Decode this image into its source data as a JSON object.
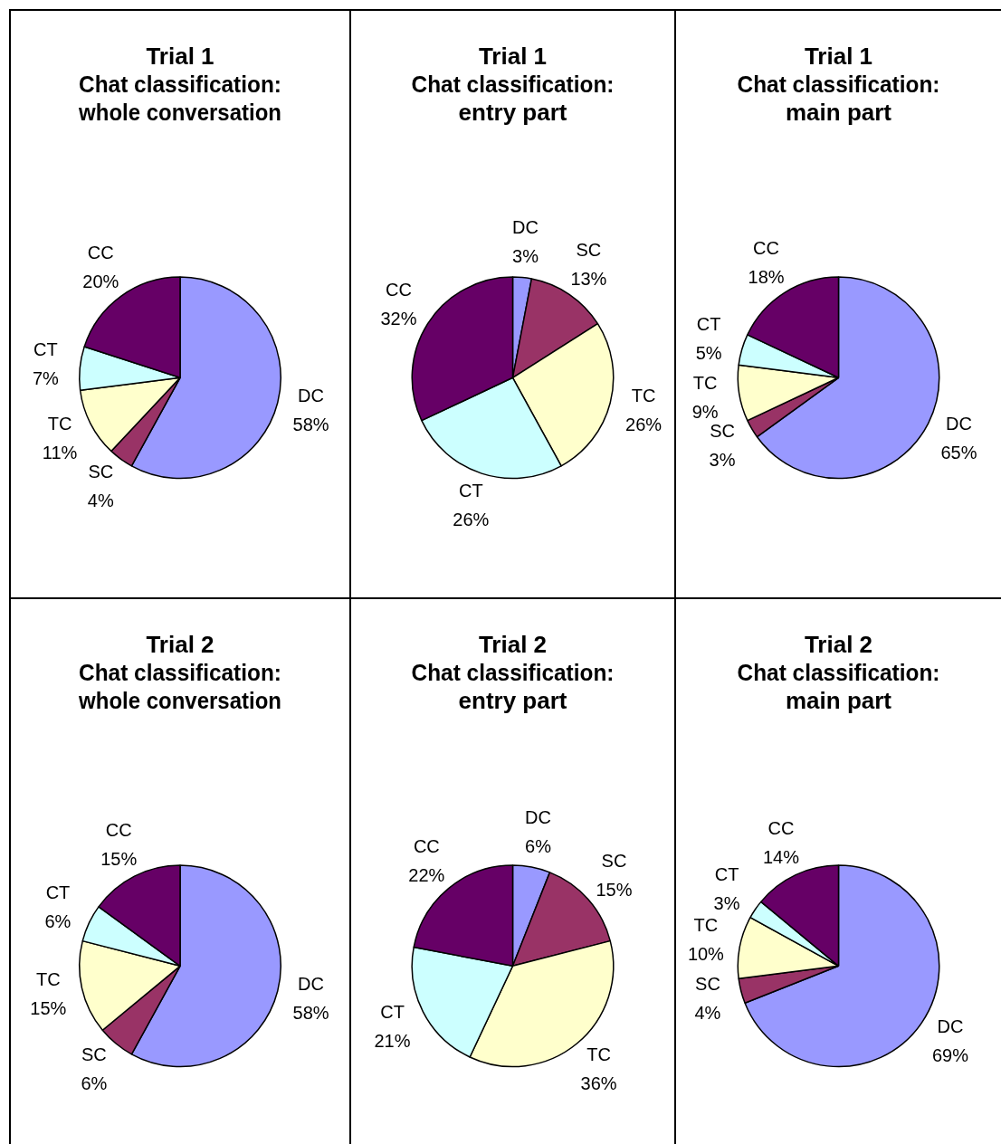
{
  "chart_data": [
    {
      "type": "pie",
      "title": "Trial 1\nChat classification:\nwhole conversation",
      "categories": [
        "DC",
        "SC",
        "TC",
        "CT",
        "CC"
      ],
      "values": [
        58,
        4,
        11,
        7,
        20
      ],
      "value_labels": [
        "58%",
        "4%",
        "11%",
        "7%",
        "20%"
      ],
      "colors": [
        "#9999ff",
        "#993366",
        "#ffffcc",
        "#ccffff",
        "#660066"
      ],
      "legend": false
    },
    {
      "type": "pie",
      "title": "Trial 1\nChat classification:\nentry part",
      "categories": [
        "DC",
        "SC",
        "TC",
        "CT",
        "CC"
      ],
      "values": [
        3,
        13,
        26,
        26,
        32
      ],
      "value_labels": [
        "3%",
        "13%",
        "26%",
        "26%",
        "32%"
      ],
      "colors": [
        "#9999ff",
        "#993366",
        "#ffffcc",
        "#ccffff",
        "#660066"
      ],
      "legend": false
    },
    {
      "type": "pie",
      "title": "Trial 1\nChat classification:\nmain part",
      "categories": [
        "DC",
        "SC",
        "TC",
        "CT",
        "CC"
      ],
      "values": [
        65,
        3,
        9,
        5,
        18
      ],
      "value_labels": [
        "65%",
        "3%",
        "9%",
        "5%",
        "18%"
      ],
      "colors": [
        "#9999ff",
        "#993366",
        "#ffffcc",
        "#ccffff",
        "#660066"
      ],
      "legend": false
    },
    {
      "type": "pie",
      "title": "Trial 2\nChat classification:\nwhole conversation",
      "categories": [
        "DC",
        "SC",
        "TC",
        "CT",
        "CC"
      ],
      "values": [
        58,
        6,
        15,
        6,
        15
      ],
      "value_labels": [
        "58%",
        "6%",
        "15%",
        "6%",
        "15%"
      ],
      "colors": [
        "#9999ff",
        "#993366",
        "#ffffcc",
        "#ccffff",
        "#660066"
      ],
      "legend": false
    },
    {
      "type": "pie",
      "title": "Trial 2\nChat classification:\nentry part",
      "categories": [
        "DC",
        "SC",
        "TC",
        "CT",
        "CC"
      ],
      "values": [
        6,
        15,
        36,
        21,
        22
      ],
      "value_labels": [
        "6%",
        "15%",
        "36%",
        "21%",
        "22%"
      ],
      "colors": [
        "#9999ff",
        "#993366",
        "#ffffcc",
        "#ccffff",
        "#660066"
      ],
      "legend": false
    },
    {
      "type": "pie",
      "title": "Trial 2\nChat classification:\nmain part",
      "categories": [
        "DC",
        "SC",
        "TC",
        "CT",
        "CC"
      ],
      "values": [
        69,
        4,
        10,
        3,
        14
      ],
      "value_labels": [
        "69%",
        "4%",
        "10%",
        "3%",
        "14%"
      ],
      "colors": [
        "#9999ff",
        "#993366",
        "#ffffcc",
        "#ccffff",
        "#660066"
      ],
      "legend": false
    }
  ]
}
